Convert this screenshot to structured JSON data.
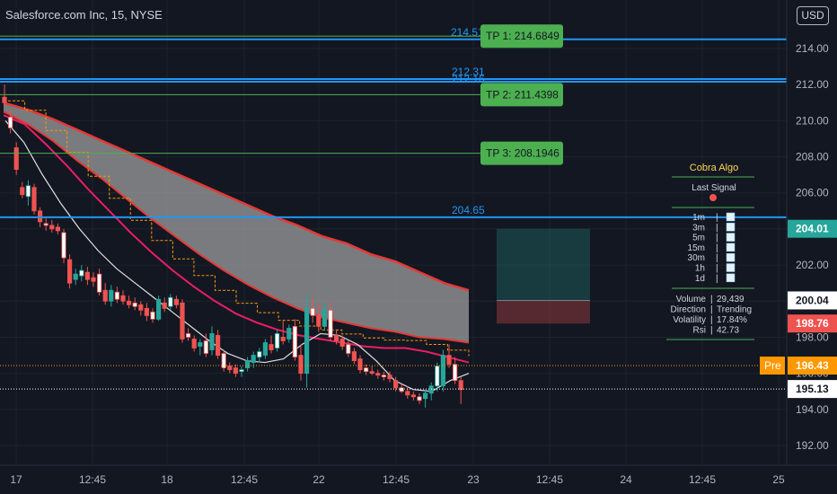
{
  "header": {
    "symbol_line": "Salesforce.com Inc, 15, NYSE",
    "currency": "USD"
  },
  "colors": {
    "background": "#131722",
    "up_candle": "#26a69a",
    "down_candle": "#ef5350",
    "level_line": "#2196f3",
    "tp_line": "#4caf50",
    "tp_label_bg": "#4caf50",
    "cloud_fill": "#9e9e9e",
    "cloud_border": "#e53935",
    "ema_fast": "#e91e63",
    "sma_white": "#e0e0e0",
    "stepline": "#ff9800",
    "axis_text": "#b2b5be"
  },
  "chart_data": {
    "type": "candlestick",
    "y_axis": {
      "min": 191.0,
      "max": 216.0,
      "ticks": [
        "192.00",
        "194.00",
        "196.00",
        "198.00",
        "200.00",
        "202.00",
        "204.00",
        "206.00",
        "208.00",
        "210.00",
        "212.00",
        "214.00"
      ]
    },
    "x_axis": {
      "ticks": [
        "17",
        "12:45",
        "18",
        "12:45",
        "22",
        "12:45",
        "23",
        "12:45",
        "24",
        "12:45",
        "25"
      ]
    },
    "candles": [
      {
        "o": 211.3,
        "h": 212.0,
        "l": 210.8,
        "c": 211.0
      },
      {
        "o": 210.2,
        "h": 210.6,
        "l": 209.3,
        "c": 209.6
      },
      {
        "o": 208.5,
        "h": 208.8,
        "l": 207.0,
        "c": 207.3
      },
      {
        "o": 206.3,
        "h": 206.6,
        "l": 205.7,
        "c": 205.9
      },
      {
        "o": 205.8,
        "h": 206.7,
        "l": 205.3,
        "c": 206.4
      },
      {
        "o": 206.3,
        "h": 206.5,
        "l": 204.8,
        "c": 205.0
      },
      {
        "o": 205.0,
        "h": 205.2,
        "l": 204.1,
        "c": 204.4
      },
      {
        "o": 204.3,
        "h": 204.6,
        "l": 203.9,
        "c": 204.2
      },
      {
        "o": 204.2,
        "h": 204.5,
        "l": 203.8,
        "c": 204.0
      },
      {
        "o": 204.1,
        "h": 204.3,
        "l": 203.7,
        "c": 203.9
      },
      {
        "o": 203.8,
        "h": 204.0,
        "l": 202.1,
        "c": 202.4
      },
      {
        "o": 202.3,
        "h": 202.6,
        "l": 200.7,
        "c": 201.0
      },
      {
        "o": 201.2,
        "h": 201.8,
        "l": 200.9,
        "c": 201.5
      },
      {
        "o": 201.4,
        "h": 202.0,
        "l": 201.1,
        "c": 201.7
      },
      {
        "o": 201.6,
        "h": 201.9,
        "l": 200.9,
        "c": 201.2
      },
      {
        "o": 201.3,
        "h": 201.6,
        "l": 200.8,
        "c": 201.1
      },
      {
        "o": 201.5,
        "h": 201.8,
        "l": 200.3,
        "c": 200.5
      },
      {
        "o": 200.6,
        "h": 201.0,
        "l": 199.8,
        "c": 200.0
      },
      {
        "o": 200.0,
        "h": 200.9,
        "l": 199.7,
        "c": 200.6
      },
      {
        "o": 200.5,
        "h": 200.8,
        "l": 199.9,
        "c": 200.1
      },
      {
        "o": 200.3,
        "h": 200.6,
        "l": 199.8,
        "c": 200.0
      },
      {
        "o": 200.0,
        "h": 200.3,
        "l": 199.6,
        "c": 199.8
      },
      {
        "o": 199.9,
        "h": 200.2,
        "l": 199.5,
        "c": 199.7
      },
      {
        "o": 199.8,
        "h": 200.0,
        "l": 199.2,
        "c": 199.5
      },
      {
        "o": 199.6,
        "h": 199.9,
        "l": 198.9,
        "c": 199.2
      },
      {
        "o": 199.4,
        "h": 199.6,
        "l": 198.8,
        "c": 199.0
      },
      {
        "o": 199.0,
        "h": 200.3,
        "l": 198.9,
        "c": 200.1
      },
      {
        "o": 199.9,
        "h": 200.2,
        "l": 199.4,
        "c": 199.6
      },
      {
        "o": 199.7,
        "h": 200.4,
        "l": 199.5,
        "c": 200.2
      },
      {
        "o": 200.1,
        "h": 200.3,
        "l": 199.6,
        "c": 199.8
      },
      {
        "o": 199.9,
        "h": 200.1,
        "l": 197.7,
        "c": 197.9
      },
      {
        "o": 198.2,
        "h": 198.5,
        "l": 197.8,
        "c": 198.0
      },
      {
        "o": 197.9,
        "h": 198.1,
        "l": 197.2,
        "c": 197.4
      },
      {
        "o": 197.5,
        "h": 197.9,
        "l": 197.0,
        "c": 197.7
      },
      {
        "o": 197.8,
        "h": 198.2,
        "l": 196.9,
        "c": 197.1
      },
      {
        "o": 197.3,
        "h": 198.6,
        "l": 197.0,
        "c": 198.2
      },
      {
        "o": 198.1,
        "h": 198.4,
        "l": 196.8,
        "c": 197.0
      },
      {
        "o": 197.1,
        "h": 197.3,
        "l": 196.1,
        "c": 196.3
      },
      {
        "o": 196.4,
        "h": 196.6,
        "l": 196.0,
        "c": 196.2
      },
      {
        "o": 196.3,
        "h": 196.5,
        "l": 195.8,
        "c": 196.0
      },
      {
        "o": 196.1,
        "h": 196.4,
        "l": 195.8,
        "c": 196.2
      },
      {
        "o": 196.3,
        "h": 196.9,
        "l": 196.1,
        "c": 196.7
      },
      {
        "o": 196.6,
        "h": 197.2,
        "l": 196.3,
        "c": 197.0
      },
      {
        "o": 196.9,
        "h": 197.4,
        "l": 196.6,
        "c": 197.2
      },
      {
        "o": 197.0,
        "h": 197.9,
        "l": 196.8,
        "c": 197.7
      },
      {
        "o": 197.6,
        "h": 198.1,
        "l": 197.1,
        "c": 197.3
      },
      {
        "o": 197.4,
        "h": 198.4,
        "l": 197.2,
        "c": 198.2
      },
      {
        "o": 198.0,
        "h": 198.9,
        "l": 197.6,
        "c": 197.8
      },
      {
        "o": 197.9,
        "h": 198.7,
        "l": 197.7,
        "c": 198.5
      },
      {
        "o": 198.6,
        "h": 199.0,
        "l": 196.7,
        "c": 196.9
      },
      {
        "o": 197.0,
        "h": 197.6,
        "l": 195.6,
        "c": 196.0
      },
      {
        "o": 196.0,
        "h": 200.4,
        "l": 195.2,
        "c": 199.6
      },
      {
        "o": 199.6,
        "h": 200.1,
        "l": 198.8,
        "c": 199.2
      },
      {
        "o": 199.2,
        "h": 199.8,
        "l": 198.3,
        "c": 198.6
      },
      {
        "o": 198.6,
        "h": 199.9,
        "l": 198.4,
        "c": 199.5
      },
      {
        "o": 199.5,
        "h": 200.0,
        "l": 197.8,
        "c": 198.0
      },
      {
        "o": 198.1,
        "h": 198.4,
        "l": 197.6,
        "c": 197.8
      },
      {
        "o": 197.9,
        "h": 198.1,
        "l": 197.3,
        "c": 197.5
      },
      {
        "o": 197.6,
        "h": 197.8,
        "l": 196.9,
        "c": 197.1
      },
      {
        "o": 197.2,
        "h": 197.4,
        "l": 196.5,
        "c": 196.7
      },
      {
        "o": 196.8,
        "h": 197.0,
        "l": 196.0,
        "c": 196.2
      },
      {
        "o": 196.3,
        "h": 196.5,
        "l": 195.9,
        "c": 196.1
      },
      {
        "o": 196.1,
        "h": 196.4,
        "l": 195.9,
        "c": 196.0
      },
      {
        "o": 196.0,
        "h": 196.2,
        "l": 195.7,
        "c": 195.9
      },
      {
        "o": 195.9,
        "h": 196.1,
        "l": 195.6,
        "c": 195.8
      },
      {
        "o": 195.9,
        "h": 196.1,
        "l": 195.5,
        "c": 195.7
      },
      {
        "o": 195.6,
        "h": 195.8,
        "l": 195.0,
        "c": 195.2
      },
      {
        "o": 195.2,
        "h": 195.4,
        "l": 194.9,
        "c": 195.0
      },
      {
        "o": 195.0,
        "h": 195.3,
        "l": 194.6,
        "c": 194.8
      },
      {
        "o": 194.8,
        "h": 195.0,
        "l": 194.5,
        "c": 194.7
      },
      {
        "o": 194.7,
        "h": 194.9,
        "l": 194.3,
        "c": 194.5
      },
      {
        "o": 194.6,
        "h": 195.1,
        "l": 194.1,
        "c": 194.9
      },
      {
        "o": 194.9,
        "h": 195.5,
        "l": 194.5,
        "c": 195.3
      },
      {
        "o": 195.3,
        "h": 196.6,
        "l": 195.0,
        "c": 196.4
      },
      {
        "o": 195.3,
        "h": 197.3,
        "l": 195.0,
        "c": 197.0
      },
      {
        "o": 197.0,
        "h": 197.6,
        "l": 196.3,
        "c": 196.5
      },
      {
        "o": 196.5,
        "h": 196.9,
        "l": 195.4,
        "c": 195.6
      },
      {
        "o": 195.6,
        "h": 195.8,
        "l": 194.3,
        "c": 195.1
      }
    ],
    "cloud_top": [
      211.0,
      210.6,
      210.1,
      209.5,
      208.9,
      208.3,
      207.7,
      207.1,
      206.5,
      205.9,
      205.3,
      204.7,
      204.2,
      203.6,
      203.2,
      202.6,
      202.2,
      201.6,
      201.0,
      200.6
    ],
    "cloud_bottom": [
      210.5,
      209.8,
      208.9,
      207.8,
      206.8,
      205.7,
      204.6,
      203.6,
      202.6,
      201.7,
      200.9,
      200.2,
      199.6,
      199.1,
      198.8,
      198.5,
      198.3,
      198.0,
      197.9,
      197.7
    ],
    "ema_fast": [
      210.3,
      209.8,
      208.7,
      207.5,
      206.2,
      205.0,
      203.8,
      202.7,
      201.7,
      200.8,
      200.0,
      199.3,
      198.8,
      198.4,
      198.1,
      197.9,
      197.7,
      197.5,
      197.4,
      197.4,
      197.2,
      196.9,
      196.6
    ],
    "sma_white": [
      210.0,
      208.8,
      207.0,
      205.4,
      204.0,
      202.8,
      201.8,
      201.0,
      200.2,
      199.4,
      198.6,
      197.8,
      197.1,
      196.7,
      196.6,
      196.8,
      197.6,
      198.2,
      198.1,
      197.6,
      196.7,
      195.6,
      195.1,
      195.0,
      195.6,
      196.0
    ],
    "levels": [
      {
        "price": 214.51,
        "label": "214.51"
      },
      {
        "price": 212.31,
        "label": "212.31"
      },
      {
        "price": 212.16,
        "label": "212.16"
      },
      {
        "price": 204.65,
        "label": "204.65"
      }
    ],
    "take_profits": [
      {
        "price": 214.6849,
        "label": "TP 1: 214.6849"
      },
      {
        "price": 211.4398,
        "label": "TP 2: 211.4398"
      },
      {
        "price": 208.1946,
        "label": "TP 3: 208.1946"
      }
    ],
    "position_box": {
      "target": 204.01,
      "entry": 200.04,
      "stop": 198.76
    },
    "price_labels": [
      {
        "price": 204.01,
        "label": "204.01",
        "color": "#26a69a"
      },
      {
        "price": 200.04,
        "label": "200.04",
        "color": "#ffffff"
      },
      {
        "price": 198.76,
        "label": "198.76",
        "color": "#ef5350"
      },
      {
        "price": 196.43,
        "label": "196.43",
        "color": "#ff9800",
        "tag": "Pre"
      },
      {
        "price": 195.13,
        "label": "195.13",
        "color": "#ffffff"
      }
    ]
  },
  "panel": {
    "title": "Cobra Algo",
    "last_signal_label": "Last Signal",
    "timeframes": [
      "1m",
      "3m",
      "5m",
      "15m",
      "30m",
      "1h",
      "1d"
    ],
    "rows": [
      {
        "key": "Volume",
        "value": "29,439"
      },
      {
        "key": "Direction",
        "value": "Trending"
      },
      {
        "key": "Volatility",
        "value": "17.84%"
      },
      {
        "key": "Rsi",
        "value": "42.73"
      }
    ]
  }
}
